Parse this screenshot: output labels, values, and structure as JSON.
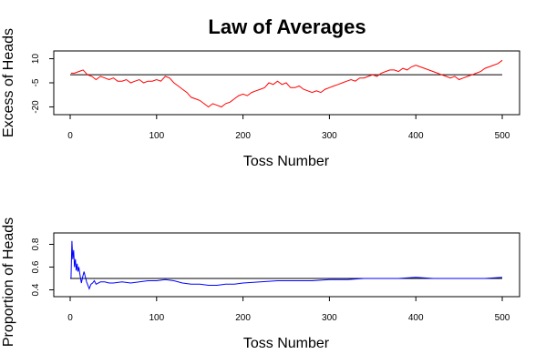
{
  "chart_data": [
    {
      "type": "line",
      "title": "Law of Averages",
      "xlabel": "Toss Number",
      "ylabel": "Excess of Heads",
      "xlim": [
        0,
        500
      ],
      "ylim": [
        -22,
        12
      ],
      "xticks": [
        "0",
        "100",
        "200",
        "300",
        "400",
        "500"
      ],
      "yticks": [
        "10",
        "-5",
        "-20"
      ],
      "reference_line": {
        "y": 0,
        "color": "#000000"
      },
      "series": [
        {
          "color": "#ff0000",
          "x": [
            1,
            5,
            10,
            15,
            20,
            25,
            30,
            35,
            40,
            45,
            50,
            55,
            60,
            65,
            70,
            75,
            80,
            85,
            90,
            95,
            100,
            105,
            110,
            115,
            120,
            125,
            130,
            135,
            140,
            145,
            150,
            155,
            160,
            165,
            170,
            175,
            180,
            185,
            190,
            195,
            200,
            205,
            210,
            215,
            220,
            225,
            230,
            235,
            240,
            245,
            250,
            255,
            260,
            265,
            270,
            275,
            280,
            285,
            290,
            295,
            300,
            305,
            310,
            315,
            320,
            325,
            330,
            335,
            340,
            345,
            350,
            355,
            360,
            365,
            370,
            375,
            380,
            385,
            390,
            395,
            400,
            405,
            410,
            415,
            420,
            425,
            430,
            435,
            440,
            445,
            450,
            455,
            460,
            465,
            470,
            475,
            480,
            485,
            490,
            495,
            500
          ],
          "y": [
            1,
            1,
            2,
            3,
            0,
            -1,
            -3,
            -1,
            -2,
            -3,
            -2,
            -4,
            -4,
            -3,
            -5,
            -4,
            -3,
            -5,
            -4,
            -4,
            -3,
            -4,
            -1,
            -2,
            -5,
            -7,
            -9,
            -11,
            -14,
            -15,
            -16,
            -18,
            -20,
            -18,
            -19,
            -20,
            -18,
            -17,
            -15,
            -13,
            -12,
            -13,
            -11,
            -10,
            -9,
            -8,
            -5,
            -6,
            -4,
            -6,
            -5,
            -8,
            -8,
            -7,
            -9,
            -10,
            -11,
            -10,
            -11,
            -9,
            -8,
            -7,
            -6,
            -5,
            -4,
            -3,
            -4,
            -2,
            -2,
            -1,
            0,
            -1,
            1,
            2,
            3,
            3,
            2,
            4,
            3,
            5,
            6,
            5,
            4,
            3,
            2,
            1,
            0,
            -1,
            -2,
            -1,
            -3,
            -2,
            -1,
            0,
            1,
            2,
            4,
            5,
            6,
            7,
            9
          ]
        }
      ]
    },
    {
      "type": "line",
      "title": "",
      "xlabel": "Toss Number",
      "ylabel": "Proportion of Heads",
      "xlim": [
        0,
        500
      ],
      "ylim": [
        0.38,
        0.86
      ],
      "xticks": [
        "0",
        "100",
        "200",
        "300",
        "400",
        "500"
      ],
      "yticks": [
        "0.4",
        "0.6",
        "0.8"
      ],
      "reference_line": {
        "y": 0.5,
        "color": "#000000"
      },
      "series": [
        {
          "color": "#0000ff",
          "x": [
            1,
            2,
            3,
            4,
            5,
            6,
            7,
            8,
            9,
            10,
            11,
            12,
            13,
            14,
            15,
            16,
            17,
            18,
            19,
            20,
            22,
            24,
            26,
            28,
            30,
            35,
            40,
            45,
            50,
            60,
            70,
            80,
            90,
            100,
            110,
            120,
            130,
            140,
            150,
            160,
            170,
            180,
            190,
            200,
            220,
            240,
            260,
            280,
            300,
            320,
            340,
            360,
            380,
            400,
            420,
            440,
            460,
            480,
            500
          ],
          "y": [
            0.5,
            0.83,
            0.67,
            0.75,
            0.6,
            0.67,
            0.57,
            0.63,
            0.56,
            0.6,
            0.55,
            0.5,
            0.46,
            0.5,
            0.53,
            0.56,
            0.53,
            0.5,
            0.47,
            0.45,
            0.41,
            0.45,
            0.46,
            0.48,
            0.45,
            0.47,
            0.47,
            0.46,
            0.46,
            0.47,
            0.46,
            0.47,
            0.48,
            0.48,
            0.49,
            0.48,
            0.46,
            0.45,
            0.45,
            0.44,
            0.44,
            0.45,
            0.45,
            0.46,
            0.47,
            0.48,
            0.48,
            0.48,
            0.49,
            0.49,
            0.5,
            0.5,
            0.5,
            0.51,
            0.5,
            0.5,
            0.5,
            0.5,
            0.51
          ]
        }
      ]
    }
  ]
}
